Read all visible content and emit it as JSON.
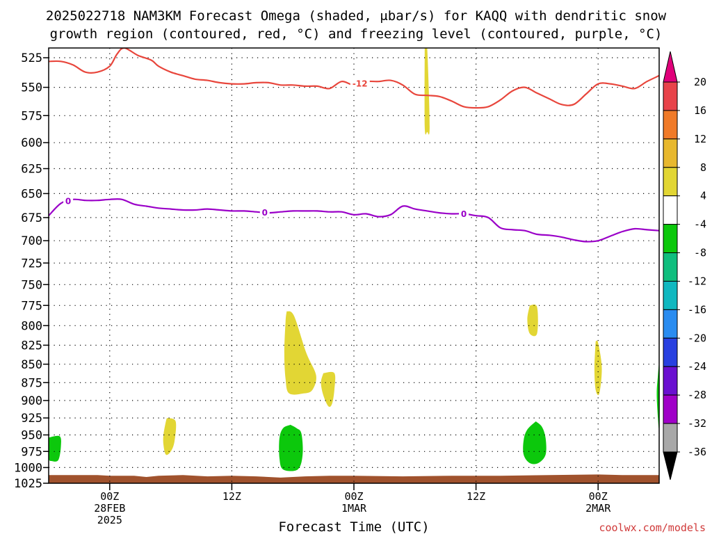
{
  "page": {
    "title_line1": "2025022718 NAM3KM Forecast Omega (shaded, μbar/s) for KAQQ with dendritic snow",
    "title_line2": "growth region (contoured, red, °C) and freezing level (contoured, purple, °C)",
    "xlabel": "Forecast Time (UTC)",
    "credit": "coolwx.com/models"
  },
  "colors": {
    "snow_contour": "#e8463c",
    "freezing_contour": "#9a00c8",
    "terrain": "#a0522d",
    "credit": "#d03a3a"
  },
  "chart_data": {
    "type": "heatmap",
    "title": "2025022718 NAM3KM Forecast Omega (shaded, μbar/s) for KAQQ with dendritic snow growth region (contoured, red, °C) and freezing level (contoured, purple, °C)",
    "xlabel": "Forecast Time (UTC)",
    "ylabel": "",
    "x_unit": "forecast hour",
    "xlim": [
      -5,
      45
    ],
    "ylim": [
      1025,
      517
    ],
    "y_scale": "log-pressure (inverted)",
    "grid": true,
    "yticks": [
      525,
      550,
      575,
      600,
      625,
      650,
      675,
      700,
      725,
      750,
      775,
      800,
      825,
      850,
      875,
      900,
      925,
      950,
      975,
      1000,
      1025
    ],
    "xticks": [
      {
        "hour": 0,
        "lines": [
          "00Z",
          "28FEB",
          "2025"
        ]
      },
      {
        "hour": 10,
        "lines": [
          "12Z"
        ]
      },
      {
        "hour": 20,
        "lines": [
          "00Z",
          "1MAR"
        ]
      },
      {
        "hour": 30,
        "lines": [
          "12Z"
        ]
      },
      {
        "hour": 40,
        "lines": [
          "00Z",
          "2MAR"
        ]
      }
    ],
    "colorbar": {
      "labels": [
        "20",
        "16",
        "12",
        "8",
        "4",
        "-4",
        "-8",
        "-12",
        "-16",
        "-20",
        "-24",
        "-28",
        "-32",
        "-36"
      ],
      "bins": [
        "#e8434a",
        "#f07a28",
        "#e8b82e",
        "#e2d634",
        "#ffffff",
        "#0cc80c",
        "#10be7e",
        "#10b8c0",
        "#2a8cf0",
        "#2840e0",
        "#6a10d0",
        "#a000c8",
        "#a8a8a8"
      ],
      "top_color": "#e0007a",
      "bottom_color": "#000000"
    },
    "series": [
      {
        "kind": "contour",
        "name": "-12",
        "color": "#e8463c",
        "points": [
          [
            -5,
            528
          ],
          [
            -4,
            528
          ],
          [
            -3,
            531
          ],
          [
            -2,
            537
          ],
          [
            -1,
            537
          ],
          [
            0,
            532
          ],
          [
            0.6,
            522
          ],
          [
            1.2,
            517
          ],
          [
            2.3,
            523
          ],
          [
            3.4,
            527
          ],
          [
            4,
            532
          ],
          [
            5,
            537
          ],
          [
            6,
            540
          ],
          [
            7,
            543
          ],
          [
            8,
            544
          ],
          [
            9,
            546
          ],
          [
            10,
            547
          ],
          [
            11,
            547
          ],
          [
            12,
            546
          ],
          [
            13,
            546
          ],
          [
            14,
            548
          ],
          [
            15,
            548
          ],
          [
            16,
            549
          ],
          [
            17,
            549
          ],
          [
            18,
            551
          ],
          [
            19,
            545
          ],
          [
            20,
            548
          ],
          [
            21,
            545
          ],
          [
            22,
            545
          ],
          [
            23,
            544
          ],
          [
            24,
            548
          ],
          [
            25,
            556
          ],
          [
            26,
            557
          ],
          [
            27,
            558
          ],
          [
            28,
            562
          ],
          [
            29,
            567
          ],
          [
            30,
            568
          ],
          [
            31,
            567
          ],
          [
            32,
            561
          ],
          [
            33,
            553
          ],
          [
            34,
            550
          ],
          [
            35,
            555
          ],
          [
            36,
            560
          ],
          [
            37,
            565
          ],
          [
            38,
            565
          ],
          [
            39,
            556
          ],
          [
            40,
            547
          ],
          [
            41,
            547
          ],
          [
            42,
            549
          ],
          [
            43,
            551
          ],
          [
            44,
            545
          ],
          [
            45,
            540
          ]
        ],
        "labels": [
          {
            "hour": 20.5,
            "text": "-12"
          }
        ]
      },
      {
        "kind": "contour",
        "name": "0",
        "color": "#9a00c8",
        "points": [
          [
            -5,
            673
          ],
          [
            -4,
            660
          ],
          [
            -3,
            656
          ],
          [
            -2,
            657
          ],
          [
            -1,
            657
          ],
          [
            0,
            656
          ],
          [
            1,
            656
          ],
          [
            2,
            661
          ],
          [
            3,
            663
          ],
          [
            4,
            665
          ],
          [
            5,
            666
          ],
          [
            6,
            667
          ],
          [
            7,
            667
          ],
          [
            8,
            666
          ],
          [
            9,
            667
          ],
          [
            10,
            668
          ],
          [
            11,
            668
          ],
          [
            12,
            669
          ],
          [
            13,
            670
          ],
          [
            14,
            669
          ],
          [
            15,
            668
          ],
          [
            16,
            668
          ],
          [
            17,
            668
          ],
          [
            18,
            669
          ],
          [
            19,
            669
          ],
          [
            20,
            672
          ],
          [
            21,
            671
          ],
          [
            22,
            674
          ],
          [
            23,
            672
          ],
          [
            24,
            663
          ],
          [
            25,
            666
          ],
          [
            26,
            668
          ],
          [
            27,
            670
          ],
          [
            28,
            671
          ],
          [
            29,
            671
          ],
          [
            30,
            673
          ],
          [
            31,
            675
          ],
          [
            32,
            686
          ],
          [
            33,
            688
          ],
          [
            34,
            689
          ],
          [
            35,
            693
          ],
          [
            36,
            694
          ],
          [
            37,
            696
          ],
          [
            38,
            699
          ],
          [
            39,
            701
          ],
          [
            40,
            700
          ],
          [
            41,
            695
          ],
          [
            42,
            690
          ],
          [
            43,
            687
          ],
          [
            44,
            688
          ],
          [
            45,
            689
          ]
        ],
        "labels": [
          {
            "hour": -3.4,
            "text": "0"
          },
          {
            "hour": 12.7,
            "text": "0"
          },
          {
            "hour": 29,
            "text": "0"
          }
        ]
      }
    ],
    "shaded_regions": [
      {
        "omega": 4,
        "color": "#e2d634",
        "points": [
          [
            25.8,
            517
          ],
          [
            26.0,
            517
          ],
          [
            26.2,
            585
          ],
          [
            26.0,
            590
          ],
          [
            25.8,
            585
          ]
        ]
      },
      {
        "omega": 4,
        "color": "#e2d634",
        "points": [
          [
            14.5,
            782
          ],
          [
            15.1,
            788
          ],
          [
            16.1,
            835
          ],
          [
            16.9,
            865
          ],
          [
            16.6,
            885
          ],
          [
            15.9,
            890
          ],
          [
            14.7,
            890
          ],
          [
            14.4,
            870
          ],
          [
            14.3,
            835
          ],
          [
            14.4,
            795
          ]
        ]
      },
      {
        "omega": 4,
        "color": "#e2d634",
        "points": [
          [
            17.5,
            862
          ],
          [
            18.4,
            862
          ],
          [
            18.4,
            885
          ],
          [
            18.2,
            905
          ],
          [
            17.9,
            908
          ],
          [
            17.5,
            893
          ],
          [
            17.3,
            875
          ]
        ]
      },
      {
        "omega": 4,
        "color": "#e2d634",
        "points": [
          [
            34.4,
            775
          ],
          [
            35.0,
            777
          ],
          [
            35.0,
            810
          ],
          [
            34.4,
            810
          ],
          [
            34.2,
            792
          ]
        ]
      },
      {
        "omega": 4,
        "color": "#e2d634",
        "points": [
          [
            39.8,
            820
          ],
          [
            40.0,
            822
          ],
          [
            40.3,
            855
          ],
          [
            40.1,
            890
          ],
          [
            39.8,
            885
          ],
          [
            39.7,
            855
          ]
        ]
      },
      {
        "omega": 4,
        "color": "#e2d634",
        "points": [
          [
            4.7,
            925
          ],
          [
            5.4,
            930
          ],
          [
            5.3,
            960
          ],
          [
            5.0,
            975
          ],
          [
            4.6,
            980
          ],
          [
            4.4,
            965
          ],
          [
            4.4,
            950
          ],
          [
            4.6,
            930
          ]
        ]
      },
      {
        "omega": -4,
        "color": "#0cc80c",
        "points": [
          [
            -5,
            954
          ],
          [
            -4.1,
            952
          ],
          [
            -4.0,
            967
          ],
          [
            -4.2,
            988
          ],
          [
            -4.7,
            990
          ],
          [
            -5,
            985
          ]
        ]
      },
      {
        "omega": -4,
        "color": "#0cc80c",
        "points": [
          [
            14.8,
            935
          ],
          [
            15.3,
            940
          ],
          [
            15.7,
            948
          ],
          [
            15.8,
            980
          ],
          [
            15.4,
            1003
          ],
          [
            14.2,
            1003
          ],
          [
            13.9,
            985
          ],
          [
            13.9,
            955
          ],
          [
            14.2,
            940
          ]
        ]
      },
      {
        "omega": -4,
        "color": "#0cc80c",
        "points": [
          [
            34.9,
            930
          ],
          [
            35.4,
            938
          ],
          [
            35.7,
            955
          ],
          [
            35.7,
            980
          ],
          [
            35.1,
            993
          ],
          [
            34.4,
            993
          ],
          [
            33.9,
            980
          ],
          [
            33.9,
            958
          ],
          [
            34.2,
            942
          ]
        ]
      },
      {
        "omega": -4,
        "color": "#0cc80c",
        "points": [
          [
            45,
            846
          ],
          [
            44.9,
            865
          ],
          [
            44.8,
            890
          ],
          [
            44.9,
            925
          ],
          [
            45,
            935
          ]
        ]
      }
    ],
    "terrain": {
      "color": "#a0522d",
      "points": [
        [
          -5,
          1012
        ],
        [
          -1,
          1012
        ],
        [
          0,
          1013
        ],
        [
          2,
          1013
        ],
        [
          3,
          1015
        ],
        [
          4,
          1013
        ],
        [
          6,
          1012
        ],
        [
          8,
          1014
        ],
        [
          10,
          1013
        ],
        [
          12,
          1014
        ],
        [
          14,
          1016
        ],
        [
          16,
          1014
        ],
        [
          18,
          1013
        ],
        [
          20,
          1013
        ],
        [
          24,
          1014
        ],
        [
          28,
          1013
        ],
        [
          32,
          1013
        ],
        [
          36,
          1012
        ],
        [
          40,
          1011
        ],
        [
          42,
          1012
        ],
        [
          45,
          1012
        ]
      ]
    }
  }
}
